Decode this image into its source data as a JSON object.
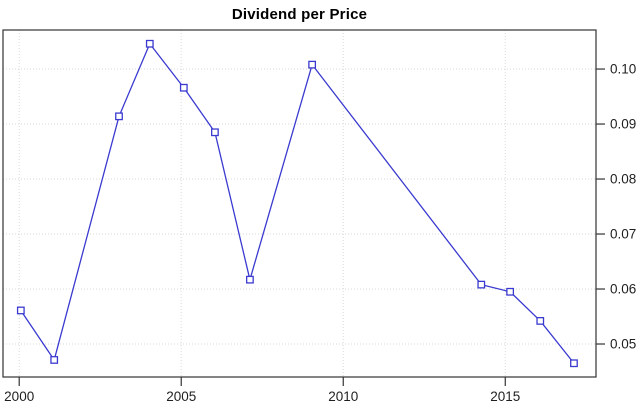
{
  "chart_data": {
    "type": "line",
    "title": "Dividend per Price",
    "xlabel": "",
    "ylabel": "",
    "series_name": "Dividend per Price",
    "x": [
      2000.05,
      2001.08,
      2003.08,
      2004.03,
      2005.08,
      2006.04,
      2007.12,
      2009.04,
      2014.26,
      2015.15,
      2016.08,
      2017.12
    ],
    "values": [
      0.0561,
      0.0471,
      0.0914,
      0.1046,
      0.0966,
      0.0885,
      0.0617,
      0.1008,
      0.0608,
      0.0595,
      0.0542,
      0.0465
    ],
    "x_ticks": [
      2000,
      2005,
      2010,
      2015
    ],
    "x_tick_labels": [
      "2000",
      "2005",
      "2010",
      "2015"
    ],
    "y_ticks": [
      0.05,
      0.06,
      0.07,
      0.08,
      0.09,
      0.1
    ],
    "y_tick_labels": [
      "0.05",
      "0.06",
      "0.07",
      "0.08",
      "0.09",
      "0.10"
    ],
    "xlim": [
      1999.5,
      2017.8
    ],
    "ylim": [
      0.044,
      0.1071
    ],
    "y_axis_side": "right",
    "grid": "dotted",
    "legend": "none",
    "marker": "open-square",
    "colors": {
      "line": "#3a3ad0",
      "marker_fill": "#ffffff",
      "grid": "#d9d9d9",
      "axis": "#333333",
      "tick_text": "#1f1f1f",
      "title": "#000000",
      "background": "#ffffff"
    }
  }
}
